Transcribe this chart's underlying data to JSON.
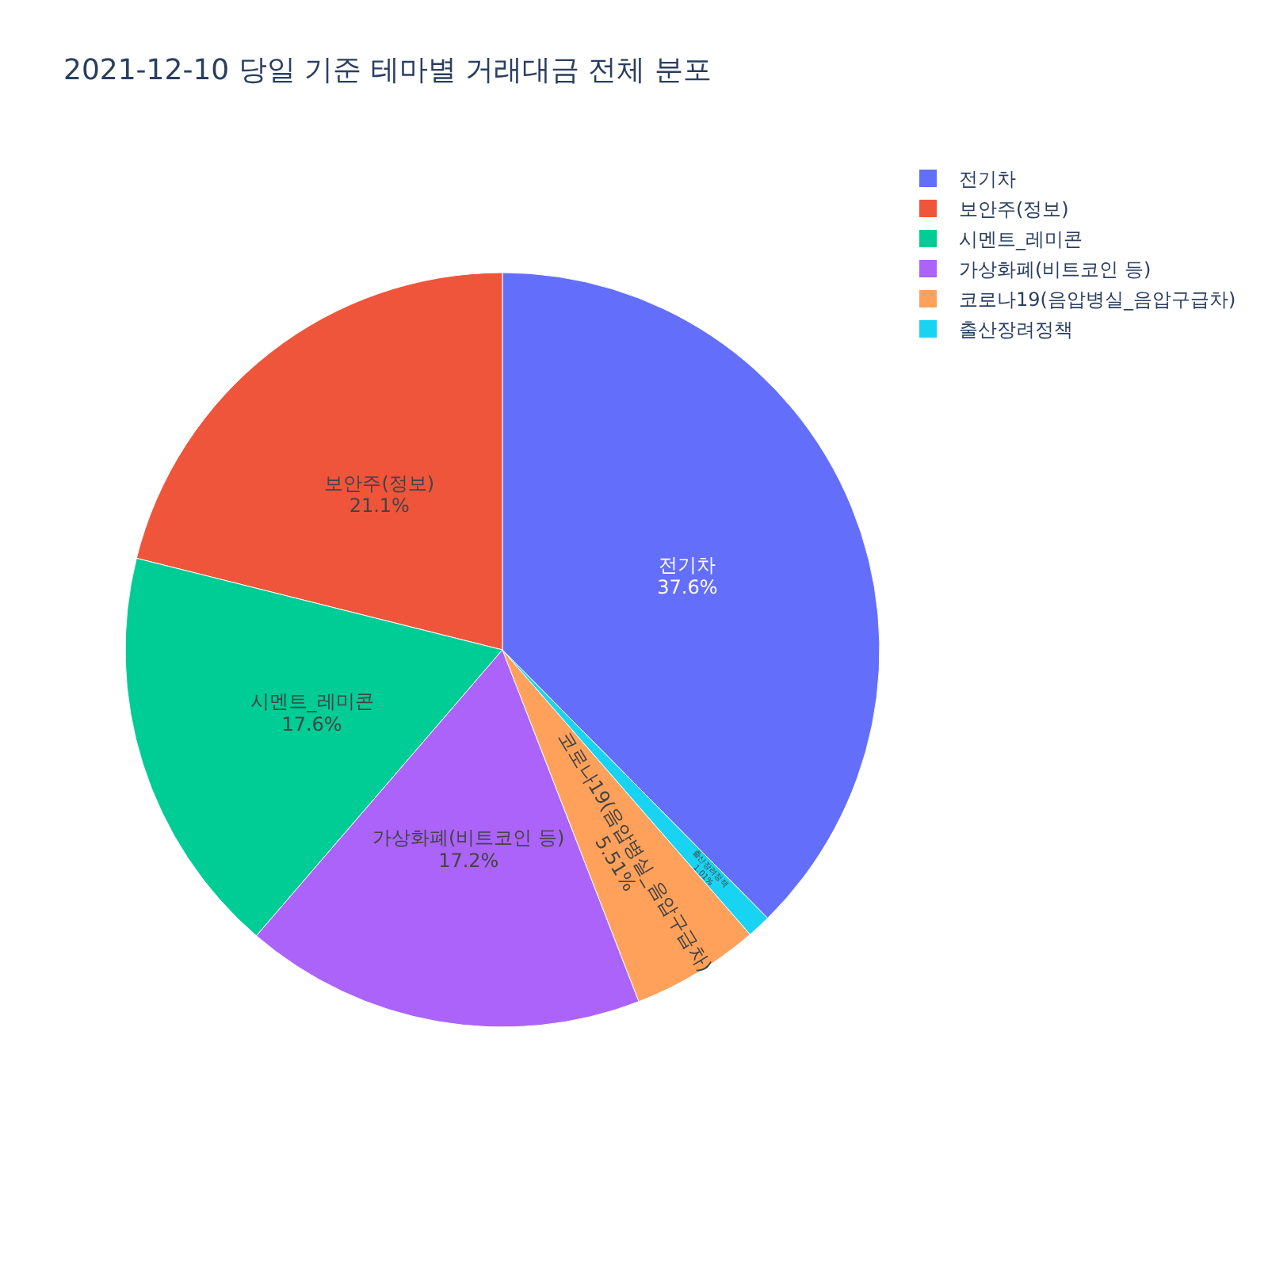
{
  "chart_data": {
    "type": "pie",
    "title": "2021-12-10 당일 기준 테마별 거래대금 전체 분포",
    "categories": [
      "전기차",
      "보안주(정보)",
      "시멘트_레미콘",
      "가상화폐(비트코인 등)",
      "코로나19(음압병실_음압구급차)",
      "출산장려정책"
    ],
    "values": [
      37.6,
      21.1,
      17.6,
      17.2,
      5.51,
      1.01
    ],
    "colors": [
      "#636efa",
      "#ef553b",
      "#00cc96",
      "#ab63fa",
      "#ffa15a",
      "#19d3f3"
    ],
    "value_labels": [
      "37.6%",
      "21.1%",
      "17.6%",
      "17.2%",
      "5.51%",
      "1.01%"
    ],
    "legend": "top right"
  }
}
